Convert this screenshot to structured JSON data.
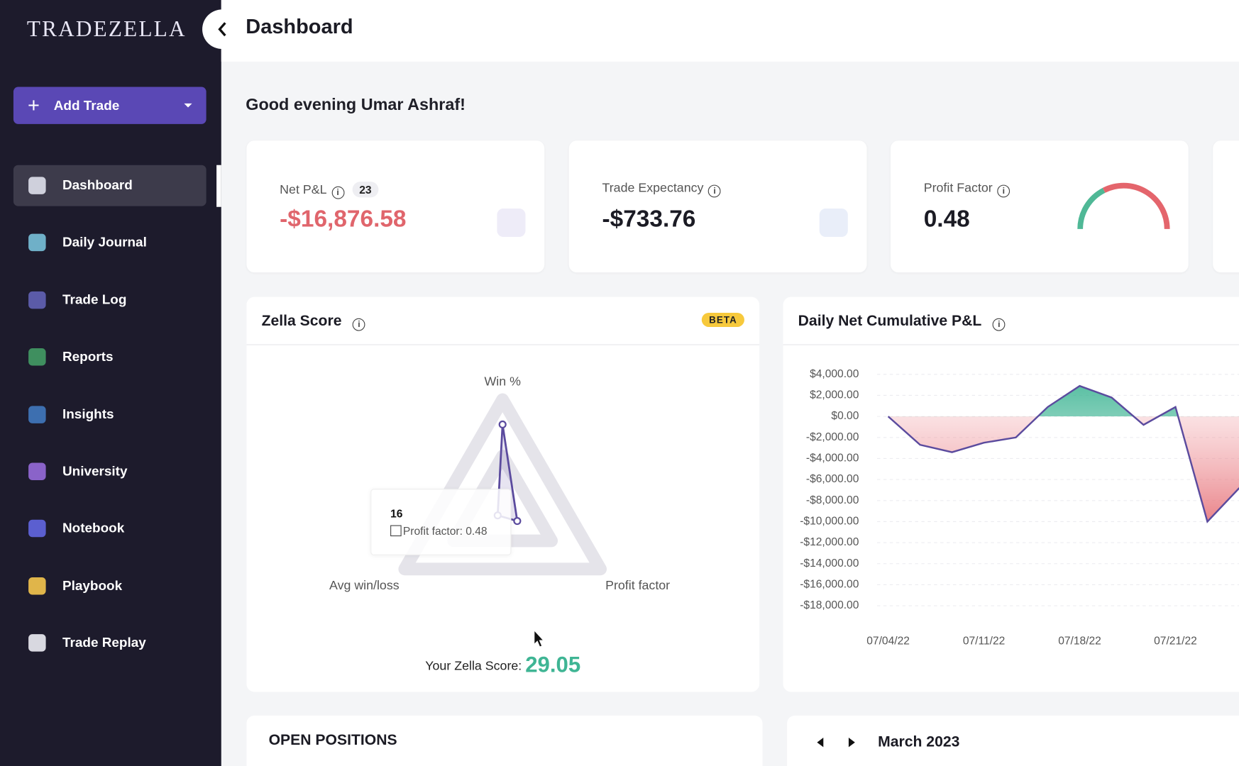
{
  "sidebar": {
    "logo": "TRADEZELLA",
    "add_trade": "Add Trade",
    "nav": [
      "Dashboard",
      "Daily Journal",
      "Trade Log",
      "Reports",
      "Insights",
      "University",
      "Notebook",
      "Playbook",
      "Trade Replay"
    ]
  },
  "header": {
    "title": "Dashboard"
  },
  "greeting": "Good evening Umar Ashraf!",
  "cards": [
    {
      "label": "Net P&L",
      "badge": "23",
      "value": "-$16,876.58"
    },
    {
      "label": "Trade Expectancy",
      "value": "-$733.76"
    },
    {
      "label": "Profit Factor",
      "value": "0.48"
    }
  ],
  "zella_score": {
    "title": "Zella Score",
    "badge": "BETA",
    "axes": [
      "Win %",
      "Profit factor",
      "Avg win/loss"
    ],
    "values": [
      78,
      15,
      5
    ],
    "rlim": [
      0,
      100
    ],
    "tooltip": {
      "title": "16",
      "item": "Profit factor: 0.48"
    },
    "score_label": "Your Zella Score:",
    "score": "29.05"
  },
  "chart_data": {
    "type": "area",
    "title": "Daily Net Cumulative P&L",
    "categories": [
      "07/04/22",
      null,
      null,
      "07/11/22",
      null,
      null,
      "07/18/22",
      null,
      null,
      "07/21/22",
      null,
      null
    ],
    "values": [
      0,
      -2700,
      -3400,
      -2500,
      -2000,
      900,
      2900,
      1800,
      -800,
      900,
      -10000,
      -6800
    ],
    "color": "#5b4b9e",
    "ylim": [
      -18000,
      4000
    ],
    "yticks": [
      {
        "value": 4000,
        "label": "$4,000.00"
      },
      {
        "value": 2000,
        "label": "$2,000.00"
      },
      {
        "value": 0,
        "label": "$0.00"
      },
      {
        "value": -2000,
        "label": "-$2,000.00"
      },
      {
        "value": -4000,
        "label": "-$4,000.00"
      },
      {
        "value": -6000,
        "label": "-$6,000.00"
      },
      {
        "value": -8000,
        "label": "-$8,000.00"
      },
      {
        "value": -10000,
        "label": "-$10,000.00"
      },
      {
        "value": -12000,
        "label": "-$12,000.00"
      },
      {
        "value": -14000,
        "label": "-$14,000.00"
      },
      {
        "value": -16000,
        "label": "-$16,000.00"
      },
      {
        "value": -18000,
        "label": "-$18,000.00"
      }
    ],
    "grid": true
  },
  "open_positions": {
    "title": "OPEN POSITIONS"
  },
  "calendar": {
    "month": "March 2023"
  }
}
